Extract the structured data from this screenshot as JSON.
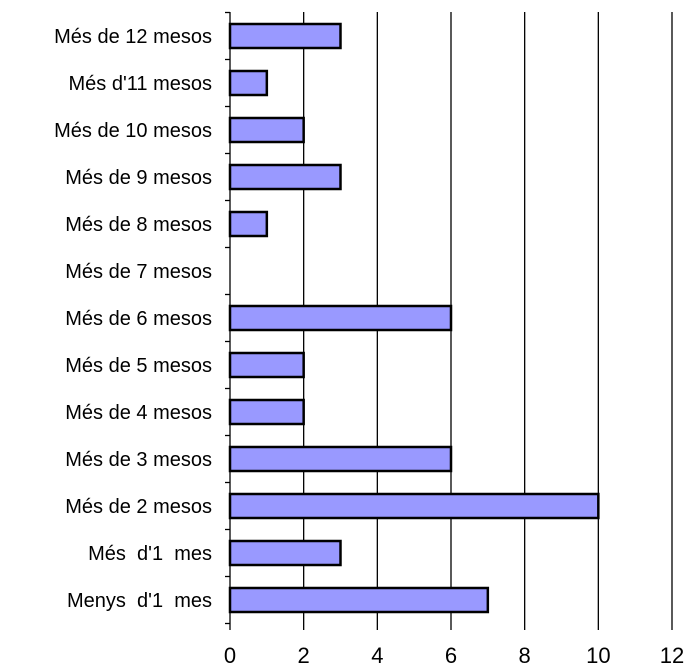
{
  "chart_data": {
    "type": "bar",
    "orientation": "horizontal",
    "categories": [
      "Més de 12 mesos",
      "Més d'11 mesos",
      "Més de 10 mesos",
      "Més de 9 mesos",
      "Més de 8 mesos",
      "Més de 7 mesos",
      "Més de 6 mesos",
      "Més de 5 mesos",
      "Més de 4 mesos",
      "Més de 3 mesos",
      "Més de 2 mesos",
      "Més  d'1  mes",
      "Menys  d'1  mes"
    ],
    "values": [
      3,
      1,
      2,
      3,
      1,
      0,
      6,
      2,
      2,
      6,
      10,
      3,
      7
    ],
    "xlim": [
      0,
      12
    ],
    "xticks": [
      "0",
      "2",
      "4",
      "6",
      "8",
      "10",
      "12"
    ],
    "grid": "vertical",
    "legend": "none",
    "colors": {
      "bar_fill": "#9999ff",
      "bar_stroke": "#000000",
      "grid": "#000000"
    }
  }
}
